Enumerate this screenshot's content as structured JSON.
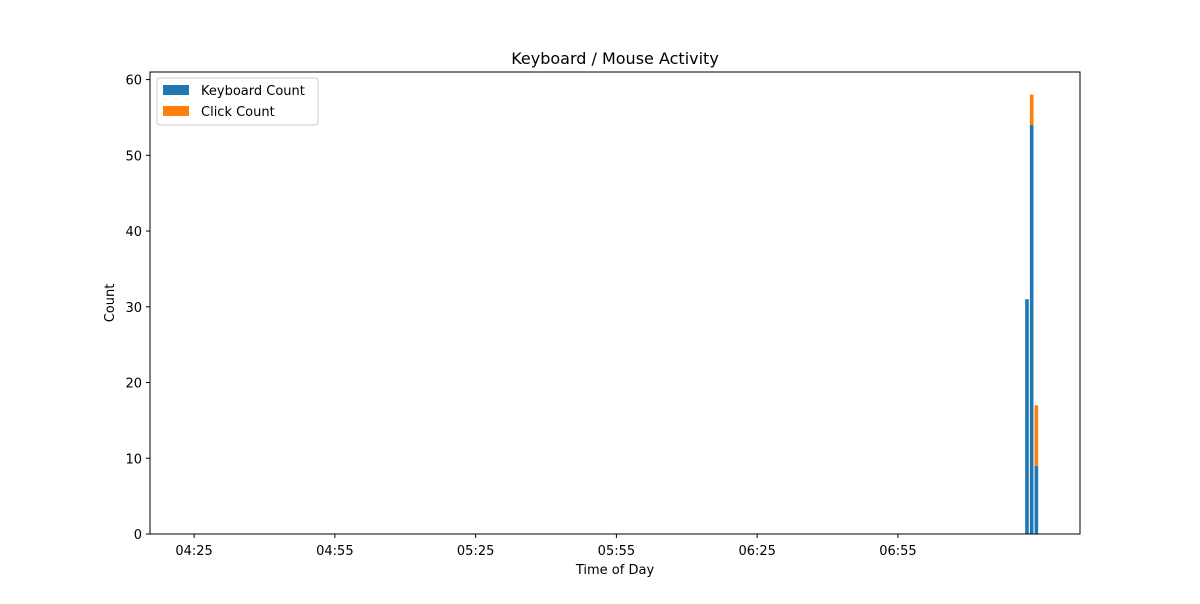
{
  "chart_data": {
    "type": "bar",
    "stacked": true,
    "title": "Keyboard / Mouse Activity",
    "xlabel": "Time of Day",
    "ylabel": "Count",
    "x_tick_labels": [
      "04:25",
      "04:55",
      "05:25",
      "05:55",
      "06:25",
      "06:55"
    ],
    "x_ticks_minutes": [
      265,
      295,
      325,
      355,
      385,
      415
    ],
    "xlim_minutes": [
      255.6,
      453.8
    ],
    "ylim": [
      0,
      61
    ],
    "y_ticks": [
      0,
      10,
      20,
      30,
      40,
      50,
      60
    ],
    "grid": false,
    "legend_position": "upper-left",
    "x_minutes": [
      442.5,
      443.5,
      444.5
    ],
    "series": [
      {
        "name": "Keyboard Count",
        "color": "#1f77b4",
        "values": [
          31,
          54,
          9
        ]
      },
      {
        "name": "Click Count",
        "color": "#ff7f0e",
        "values": [
          0,
          4,
          8
        ]
      }
    ]
  }
}
